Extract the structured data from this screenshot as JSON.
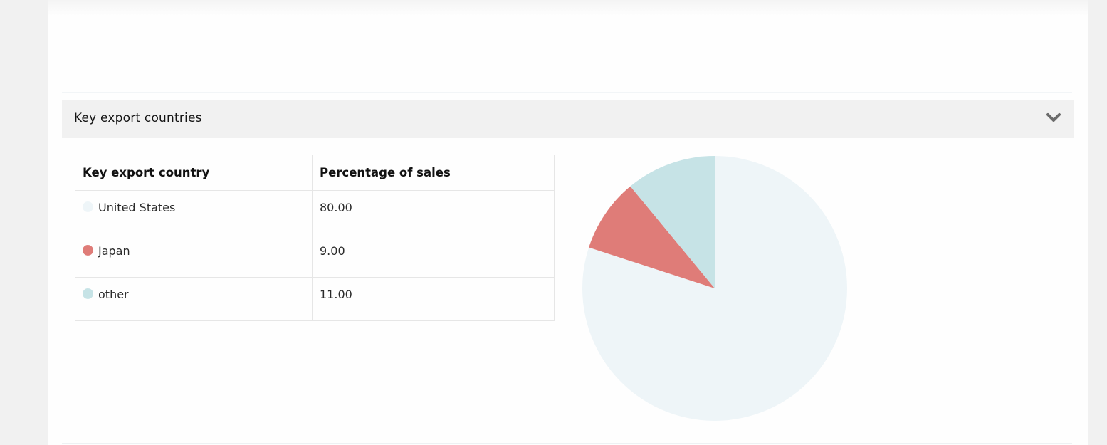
{
  "section": {
    "title": "Key export countries",
    "toggle_icon": "chevron-down-icon"
  },
  "table": {
    "headers": [
      "Key export country",
      "Percentage of sales"
    ],
    "rows": [
      {
        "country": "United States",
        "percentage": "80.00",
        "color": "#eef5f8"
      },
      {
        "country": "Japan",
        "percentage": "9.00",
        "color": "#df7c78"
      },
      {
        "country": "other",
        "percentage": "11.00",
        "color": "#c6e3e6"
      }
    ]
  },
  "chart_data": {
    "type": "pie",
    "labels": [
      "United States",
      "Japan",
      "other"
    ],
    "values": [
      80,
      9,
      11
    ],
    "colors": [
      "#eef5f8",
      "#df7c78",
      "#c6e3e6"
    ],
    "start": "top, clockwise"
  }
}
